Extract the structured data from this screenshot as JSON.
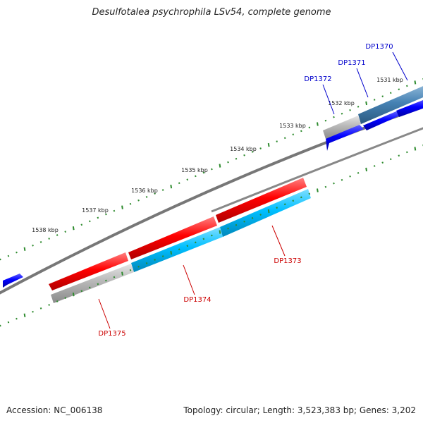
{
  "title": "Desulfotalea psychrophila LSv54, complete genome",
  "footer": {
    "accession": "Accession: NC_006138",
    "summary": "Topology: circular; Length: 3,523,383 bp; Genes: 3,202"
  },
  "ticks": [
    {
      "label": "1531 kbp"
    },
    {
      "label": "1532 kbp"
    },
    {
      "label": "1533 kbp"
    },
    {
      "label": "1534 kbp"
    },
    {
      "label": "1535 kbp"
    },
    {
      "label": "1536 kbp"
    },
    {
      "label": "1537 kbp"
    },
    {
      "label": "1538 kbp"
    }
  ],
  "genes": [
    {
      "id": "DP1370",
      "strand": "forward",
      "color": "#0000cc"
    },
    {
      "id": "DP1371",
      "strand": "forward",
      "color": "#0000cc"
    },
    {
      "id": "DP1372",
      "strand": "forward",
      "color": "#0000cc"
    },
    {
      "id": "DP1373",
      "strand": "reverse",
      "color": "#cc0000"
    },
    {
      "id": "DP1374",
      "strand": "reverse",
      "color": "#cc0000"
    },
    {
      "id": "DP1375",
      "strand": "reverse",
      "color": "#cc0000"
    }
  ],
  "colors": {
    "forward_cds": "#0000ff",
    "reverse_cds": "#ff0000",
    "forward_feature": "#4682b4",
    "reverse_feature": "#00bfff",
    "other_feature": "#b0b0b0",
    "backbone": "#777777",
    "ruler_dots": "#2e8b2e"
  }
}
